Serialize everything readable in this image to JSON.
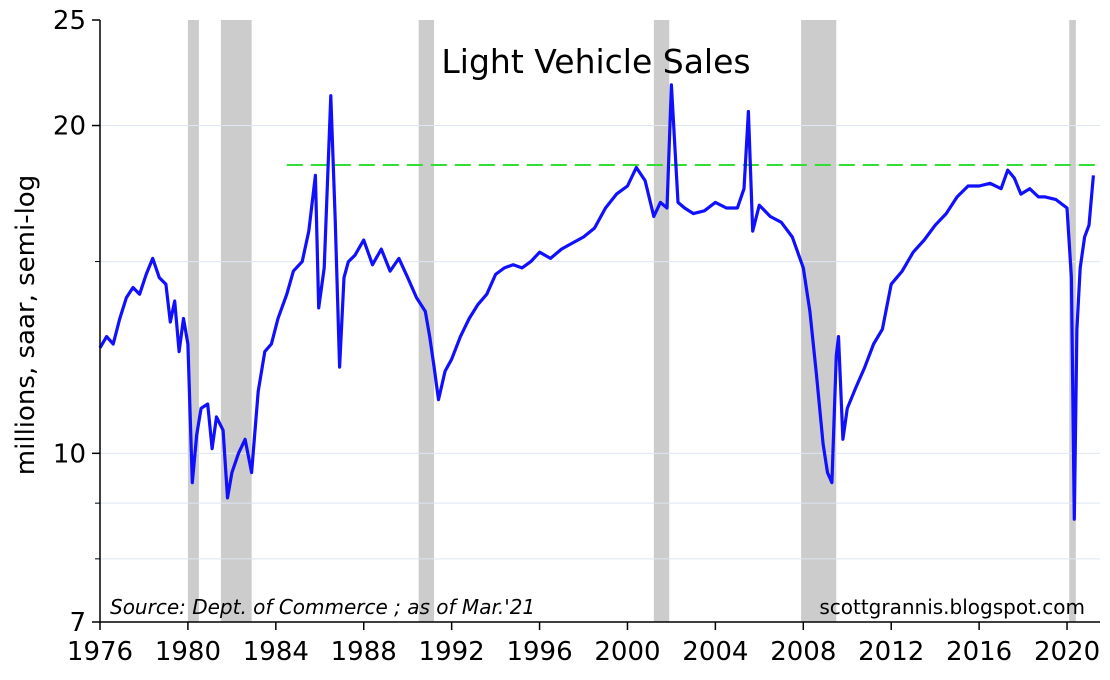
{
  "chart_data": {
    "type": "line",
    "title": "Light Vehicle Sales",
    "ylabel": "millions, saar, semi-log",
    "xlabel": "",
    "y_scale": "log",
    "ylim": [
      7,
      25
    ],
    "xlim": [
      1976,
      2021.5
    ],
    "y_ticks": [
      7,
      10,
      20,
      25
    ],
    "x_ticks": [
      1976,
      1980,
      1984,
      1988,
      1992,
      1996,
      2000,
      2004,
      2008,
      2012,
      2016,
      2020
    ],
    "grid": "horizontal",
    "source_note": "Source:  Dept. of Commerce ; as of Mar.'21",
    "credit": "scottgrannis.blogspot.com",
    "colors": {
      "series": "#1010ff",
      "reference_line": "#33dd33",
      "recession": "#cccccc",
      "grid": "#dde6f2"
    },
    "reference_line": {
      "y": 18.4,
      "x_start": 1984.5,
      "x_end": 2021.5,
      "style": "dashed"
    },
    "recessions": [
      [
        1980.0,
        1980.5
      ],
      [
        1981.5,
        1982.9
      ],
      [
        1990.5,
        1991.2
      ],
      [
        2001.2,
        2001.9
      ],
      [
        2007.9,
        2009.5
      ],
      [
        2020.1,
        2020.4
      ]
    ],
    "series": [
      {
        "x": [
          1976.0,
          1976.3,
          1976.6,
          1976.9,
          1977.2,
          1977.5,
          1977.8,
          1978.1,
          1978.4,
          1978.7,
          1979.0,
          1979.2,
          1979.4,
          1979.6,
          1979.8,
          1980.0,
          1980.2,
          1980.4,
          1980.6,
          1980.9,
          1981.1,
          1981.3,
          1981.6,
          1981.8,
          1982.0,
          1982.3,
          1982.6,
          1982.9,
          1983.2,
          1983.5,
          1983.8,
          1984.1,
          1984.5,
          1984.8,
          1985.2,
          1985.5,
          1985.8,
          1985.95,
          1986.2,
          1986.5,
          1986.7,
          1986.9,
          1987.1,
          1987.3,
          1987.6,
          1988.0,
          1988.4,
          1988.8,
          1989.2,
          1989.6,
          1990.0,
          1990.4,
          1990.8,
          1991.0,
          1991.2,
          1991.4,
          1991.7,
          1992.0,
          1992.4,
          1992.8,
          1993.2,
          1993.6,
          1994.0,
          1994.4,
          1994.8,
          1995.2,
          1995.6,
          1996.0,
          1996.5,
          1997.0,
          1997.5,
          1998.0,
          1998.5,
          1999.0,
          1999.5,
          2000.0,
          2000.4,
          2000.8,
          2001.2,
          2001.5,
          2001.8,
          2002.0,
          2002.3,
          2002.6,
          2003.0,
          2003.5,
          2004.0,
          2004.5,
          2005.0,
          2005.3,
          2005.5,
          2005.7,
          2006.0,
          2006.5,
          2007.0,
          2007.5,
          2008.0,
          2008.3,
          2008.6,
          2008.9,
          2009.1,
          2009.3,
          2009.5,
          2009.6,
          2009.8,
          2010.0,
          2010.4,
          2010.8,
          2011.2,
          2011.6,
          2012.0,
          2012.5,
          2013.0,
          2013.5,
          2014.0,
          2014.5,
          2015.0,
          2015.5,
          2016.0,
          2016.5,
          2017.0,
          2017.3,
          2017.6,
          2017.9,
          2018.3,
          2018.7,
          2019.0,
          2019.5,
          2020.0,
          2020.2,
          2020.33,
          2020.45,
          2020.6,
          2020.8,
          2021.0,
          2021.2
        ],
        "values": [
          12.5,
          12.8,
          12.6,
          13.3,
          13.9,
          14.2,
          14.0,
          14.6,
          15.1,
          14.5,
          14.3,
          13.2,
          13.8,
          12.4,
          13.3,
          12.6,
          9.4,
          10.4,
          11.0,
          11.1,
          10.1,
          10.8,
          10.5,
          9.1,
          9.6,
          10.0,
          10.3,
          9.6,
          11.4,
          12.4,
          12.6,
          13.3,
          14.0,
          14.7,
          15.0,
          16.0,
          18.0,
          13.6,
          14.8,
          21.3,
          16.4,
          12.0,
          14.5,
          15.0,
          15.2,
          15.7,
          14.9,
          15.4,
          14.7,
          15.1,
          14.5,
          13.9,
          13.5,
          12.8,
          12.0,
          11.2,
          11.9,
          12.2,
          12.8,
          13.3,
          13.7,
          14.0,
          14.6,
          14.8,
          14.9,
          14.8,
          15.0,
          15.3,
          15.1,
          15.4,
          15.6,
          15.8,
          16.1,
          16.8,
          17.3,
          17.6,
          18.3,
          17.8,
          16.5,
          17.0,
          16.8,
          21.8,
          17.0,
          16.8,
          16.6,
          16.7,
          17.0,
          16.8,
          16.8,
          17.5,
          20.6,
          16.0,
          16.9,
          16.5,
          16.3,
          15.8,
          14.8,
          13.5,
          11.8,
          10.2,
          9.6,
          9.4,
          12.3,
          12.8,
          10.3,
          11.0,
          11.5,
          12.0,
          12.6,
          13.0,
          14.3,
          14.7,
          15.3,
          15.7,
          16.2,
          16.6,
          17.2,
          17.6,
          17.6,
          17.7,
          17.5,
          18.2,
          17.9,
          17.3,
          17.5,
          17.2,
          17.2,
          17.1,
          16.8,
          14.5,
          8.7,
          13.0,
          14.8,
          15.8,
          16.2,
          18.0
        ]
      }
    ]
  }
}
